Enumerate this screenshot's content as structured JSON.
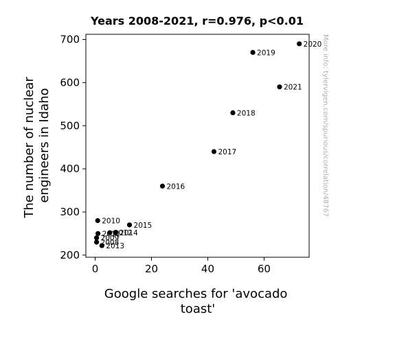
{
  "chart_data": {
    "type": "scatter",
    "title": "Years 2008-2021, r=0.976, p<0.01",
    "xlabel_lines": [
      "Google searches for 'avocado",
      "toast'"
    ],
    "ylabel_lines": [
      "The number of nuclear",
      "engineers in Idaho"
    ],
    "xlim": [
      -3.3,
      76
    ],
    "ylim": [
      195,
      712
    ],
    "xticks": [
      0,
      20,
      40,
      60
    ],
    "yticks": [
      200,
      300,
      400,
      500,
      600,
      700
    ],
    "grid": false,
    "point_color": "#000000",
    "points": [
      {
        "label": "2008",
        "x": 0.5,
        "y": 230
      },
      {
        "label": "2009",
        "x": 0.5,
        "y": 240
      },
      {
        "label": "2010",
        "x": 0.9,
        "y": 280
      },
      {
        "label": "2011",
        "x": 1.0,
        "y": 250
      },
      {
        "label": "2012",
        "x": 5.2,
        "y": 252
      },
      {
        "label": "2013",
        "x": 2.4,
        "y": 222
      },
      {
        "label": "2014",
        "x": 7.2,
        "y": 252
      },
      {
        "label": "2015",
        "x": 12.2,
        "y": 270
      },
      {
        "label": "2016",
        "x": 23.9,
        "y": 360
      },
      {
        "label": "2017",
        "x": 42.2,
        "y": 440
      },
      {
        "label": "2018",
        "x": 48.9,
        "y": 530
      },
      {
        "label": "2019",
        "x": 56.0,
        "y": 670
      },
      {
        "label": "2020",
        "x": 72.5,
        "y": 690
      },
      {
        "label": "2021",
        "x": 65.5,
        "y": 590
      }
    ]
  },
  "watermark": "More info: tylervigen.com/spurious/correlation/48767"
}
